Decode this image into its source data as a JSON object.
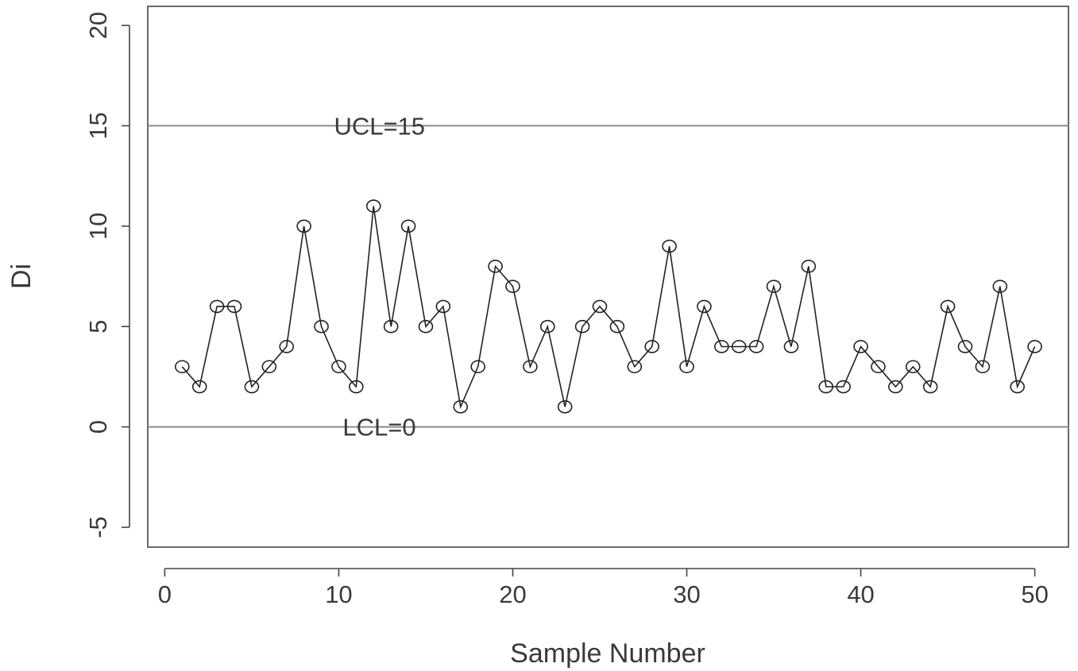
{
  "chart_data": {
    "type": "line",
    "title": "",
    "xlabel": "Sample Number",
    "ylabel": "Di",
    "xlim": [
      0,
      50
    ],
    "ylim": [
      -5,
      20
    ],
    "x_ticks": [
      0,
      10,
      20,
      30,
      40,
      50
    ],
    "y_ticks": [
      -5,
      0,
      5,
      10,
      15,
      20
    ],
    "x_tick_labels": [
      "0",
      "10",
      "20",
      "30",
      "40",
      "50"
    ],
    "y_tick_labels": [
      "-5",
      "0",
      "5",
      "10",
      "15",
      "20"
    ],
    "grid": false,
    "marker": "open-circle",
    "control_limits": [
      {
        "name": "UCL",
        "value": 15,
        "label": "UCL=15",
        "label_x": 10
      },
      {
        "name": "LCL",
        "value": 0,
        "label": "LCL=0",
        "label_x": 10.5
      }
    ],
    "series": [
      {
        "x": [
          1,
          2,
          3,
          4,
          5,
          6,
          7,
          8,
          9,
          10,
          11,
          12,
          13,
          14,
          15,
          16,
          17,
          18,
          19,
          20,
          21,
          22,
          23,
          24,
          25,
          26,
          27,
          28,
          29,
          30,
          31,
          32,
          33,
          34,
          35,
          36,
          37,
          38,
          39,
          40,
          41,
          42,
          43,
          44,
          45,
          46,
          47,
          48,
          49,
          50
        ],
        "values": [
          3,
          2,
          6,
          6,
          2,
          3,
          4,
          10,
          5,
          3,
          2,
          11,
          5,
          10,
          5,
          6,
          1,
          3,
          8,
          7,
          3,
          5,
          1,
          5,
          6,
          5,
          3,
          4,
          9,
          3,
          6,
          4,
          4,
          4,
          7,
          4,
          8,
          2,
          2,
          4,
          3,
          2,
          3,
          2,
          6,
          4,
          3,
          7,
          2,
          4
        ]
      }
    ],
    "colors": {
      "line": "#222222",
      "limit_line": "#8a8a8a",
      "axis": "#444444"
    }
  }
}
